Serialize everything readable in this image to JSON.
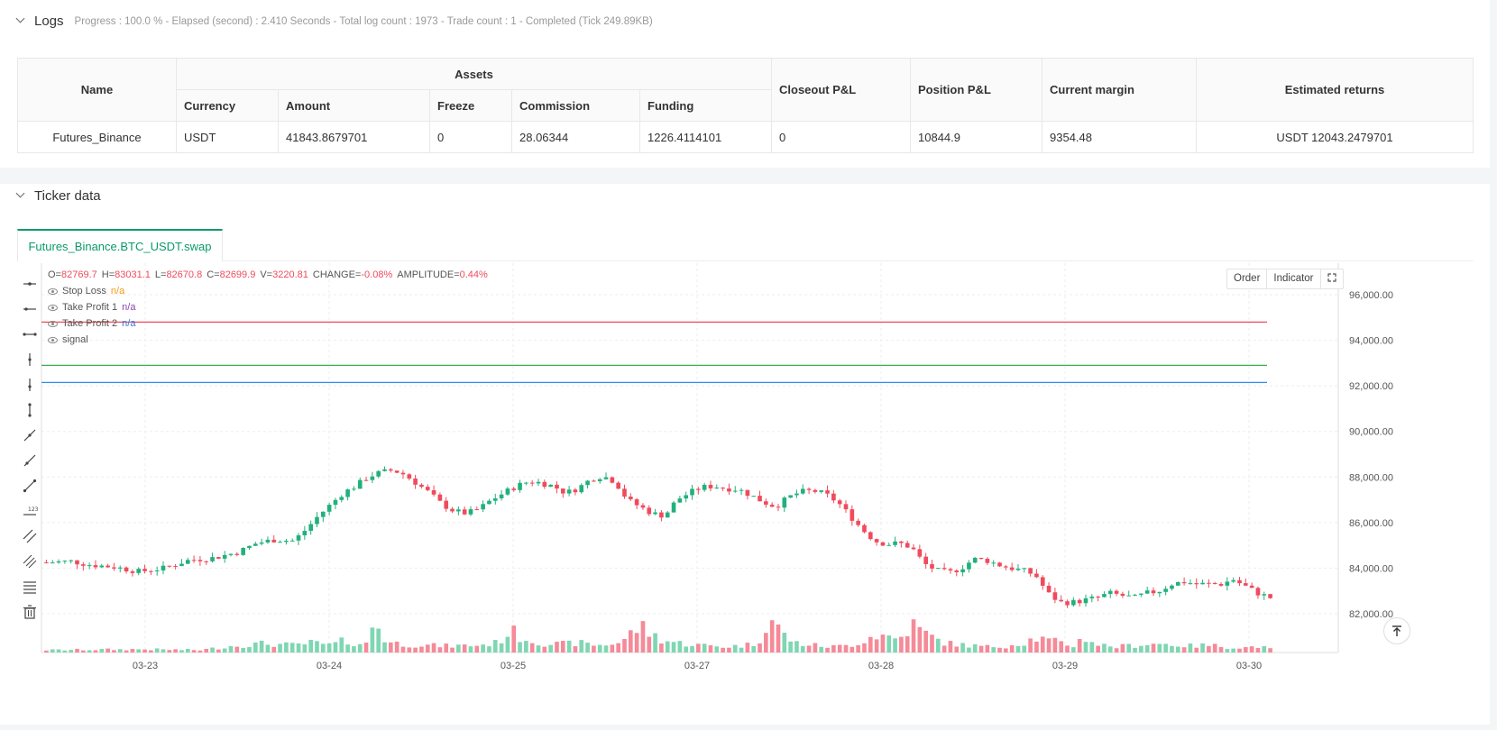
{
  "logs": {
    "title": "Logs",
    "status": "Progress : 100.0 % - Elapsed (second) : 2.410  Seconds - Total log count : 1973 - Trade count : 1 - Completed (Tick 249.89KB)"
  },
  "assets_table": {
    "headers": {
      "name": "Name",
      "assets": "Assets",
      "currency": "Currency",
      "amount": "Amount",
      "freeze": "Freeze",
      "commission": "Commission",
      "funding": "Funding",
      "closeout_pnl": "Closeout P&L",
      "position_pnl": "Position P&L",
      "current_margin": "Current margin",
      "estimated_returns": "Estimated returns"
    },
    "row": {
      "name": "Futures_Binance",
      "currency": "USDT",
      "amount": "41843.8679701",
      "freeze": "0",
      "commission": "28.06344",
      "funding": "1226.4114101",
      "closeout_pnl": "0",
      "position_pnl": "10844.9",
      "current_margin": "9354.48",
      "estimated_returns": "USDT 12043.2479701"
    }
  },
  "ticker": {
    "title": "Ticker data",
    "tab_label": "Futures_Binance.BTC_USDT.swap",
    "buttons": {
      "order": "Order",
      "indicator": "Indicator"
    },
    "legend": {
      "o_label": "O=",
      "o": "82769.7",
      "h_label": "H=",
      "h": "83031.1",
      "l_label": "L=",
      "l": "82670.8",
      "c_label": "C=",
      "c": "82699.9",
      "v_label": "V=",
      "v": "3220.81",
      "change_label": "CHANGE=",
      "change": "-0.08%",
      "amplitude_label": "AMPLITUDE=",
      "amplitude": "0.44%",
      "series": [
        {
          "name": "Stop Loss",
          "value": "n/a"
        },
        {
          "name": "Take Profit 1",
          "value": "n/a"
        },
        {
          "name": "Take Profit 2",
          "value": "n/a"
        },
        {
          "name": "signal",
          "value": ""
        }
      ]
    }
  },
  "chart_data": {
    "type": "candlestick",
    "y_ticks": [
      "96,000.00",
      "94,000.00",
      "92,000.00",
      "90,000.00",
      "88,000.00",
      "86,000.00",
      "84,000.00",
      "82,000.00"
    ],
    "y_tick_values": [
      96000,
      94000,
      92000,
      90000,
      88000,
      86000,
      84000,
      82000
    ],
    "x_ticks": [
      "03-23",
      "03-24",
      "03-25",
      "03-27",
      "03-28",
      "03-29",
      "03-30"
    ],
    "horizontal_lines": [
      {
        "name": "Stop Loss",
        "value": 94800,
        "color": "#ef4b5c"
      },
      {
        "name": "Take Profit 1",
        "value": 92900,
        "color": "#3cae4f"
      },
      {
        "name": "Take Profit 2",
        "value": 92150,
        "color": "#2c8ff0"
      }
    ],
    "up_color": "#22b07d",
    "down_color": "#ef4b5c",
    "close_path": [
      [
        0,
        84250
      ],
      [
        8,
        84300
      ],
      [
        14,
        84150
      ],
      [
        22,
        84050
      ],
      [
        30,
        83850
      ],
      [
        38,
        84000
      ],
      [
        46,
        84350
      ],
      [
        54,
        84450
      ],
      [
        62,
        84700
      ],
      [
        68,
        85100
      ],
      [
        74,
        85250
      ],
      [
        80,
        85200
      ],
      [
        84,
        85700
      ],
      [
        88,
        86300
      ],
      [
        92,
        86800
      ],
      [
        96,
        87300
      ],
      [
        100,
        87600
      ],
      [
        104,
        88000
      ],
      [
        108,
        88200
      ],
      [
        112,
        88300
      ],
      [
        116,
        88100
      ],
      [
        120,
        87700
      ],
      [
        124,
        87300
      ],
      [
        128,
        86800
      ],
      [
        132,
        86500
      ],
      [
        136,
        86400
      ],
      [
        140,
        86600
      ],
      [
        144,
        87000
      ],
      [
        148,
        87300
      ],
      [
        152,
        87600
      ],
      [
        156,
        87800
      ],
      [
        160,
        87750
      ],
      [
        164,
        87600
      ],
      [
        168,
        87300
      ],
      [
        172,
        87500
      ],
      [
        176,
        87900
      ],
      [
        180,
        88050
      ],
      [
        184,
        87800
      ],
      [
        188,
        87000
      ],
      [
        192,
        86700
      ],
      [
        196,
        86400
      ],
      [
        200,
        86300
      ],
      [
        204,
        87000
      ],
      [
        208,
        87300
      ],
      [
        212,
        87550
      ],
      [
        216,
        87600
      ],
      [
        220,
        87500
      ],
      [
        224,
        87450
      ],
      [
        228,
        87200
      ],
      [
        232,
        86900
      ],
      [
        236,
        86700
      ],
      [
        240,
        87100
      ],
      [
        244,
        87350
      ],
      [
        248,
        87400
      ],
      [
        252,
        87250
      ],
      [
        256,
        86900
      ],
      [
        260,
        86300
      ],
      [
        264,
        85700
      ],
      [
        268,
        85200
      ],
      [
        272,
        85050
      ],
      [
        276,
        85100
      ],
      [
        280,
        84900
      ],
      [
        284,
        84200
      ],
      [
        288,
        83900
      ],
      [
        292,
        83800
      ],
      [
        296,
        84000
      ],
      [
        300,
        84400
      ],
      [
        304,
        84350
      ],
      [
        308,
        84150
      ],
      [
        312,
        84000
      ],
      [
        316,
        83900
      ],
      [
        320,
        83700
      ],
      [
        324,
        82900
      ],
      [
        328,
        82500
      ],
      [
        332,
        82500
      ],
      [
        336,
        82600
      ],
      [
        340,
        82700
      ],
      [
        344,
        82900
      ],
      [
        348,
        82800
      ],
      [
        352,
        82700
      ],
      [
        356,
        82900
      ],
      [
        360,
        83000
      ],
      [
        364,
        83300
      ],
      [
        368,
        83400
      ],
      [
        372,
        83300
      ],
      [
        376,
        83300
      ],
      [
        380,
        83300
      ],
      [
        384,
        83500
      ],
      [
        388,
        83200
      ],
      [
        392,
        82900
      ],
      [
        396,
        82700
      ]
    ],
    "volume_profile": [
      [
        0,
        3
      ],
      [
        30,
        4
      ],
      [
        50,
        3
      ],
      [
        60,
        8
      ],
      [
        70,
        11
      ],
      [
        80,
        9
      ],
      [
        86,
        12
      ],
      [
        92,
        9
      ],
      [
        96,
        14
      ],
      [
        100,
        12
      ],
      [
        104,
        10
      ],
      [
        106,
        42
      ],
      [
        110,
        13
      ],
      [
        116,
        10
      ],
      [
        122,
        9
      ],
      [
        130,
        8
      ],
      [
        140,
        9
      ],
      [
        146,
        12
      ],
      [
        150,
        27
      ],
      [
        154,
        18
      ],
      [
        160,
        12
      ],
      [
        166,
        10
      ],
      [
        172,
        12
      ],
      [
        176,
        10
      ],
      [
        180,
        9
      ],
      [
        186,
        13
      ],
      [
        192,
        33
      ],
      [
        196,
        22
      ],
      [
        200,
        15
      ],
      [
        206,
        11
      ],
      [
        212,
        9
      ],
      [
        220,
        7
      ],
      [
        226,
        9
      ],
      [
        230,
        11
      ],
      [
        234,
        44
      ],
      [
        238,
        24
      ],
      [
        242,
        12
      ],
      [
        248,
        9
      ],
      [
        254,
        7
      ],
      [
        260,
        9
      ],
      [
        264,
        14
      ],
      [
        268,
        22
      ],
      [
        272,
        20
      ],
      [
        276,
        16
      ],
      [
        280,
        35
      ],
      [
        284,
        24
      ],
      [
        288,
        16
      ],
      [
        292,
        11
      ],
      [
        298,
        9
      ],
      [
        304,
        7
      ],
      [
        310,
        8
      ],
      [
        316,
        12
      ],
      [
        320,
        18
      ],
      [
        324,
        15
      ],
      [
        328,
        12
      ],
      [
        332,
        8
      ],
      [
        336,
        19
      ],
      [
        340,
        10
      ],
      [
        346,
        7
      ],
      [
        352,
        9
      ],
      [
        358,
        11
      ],
      [
        364,
        10
      ],
      [
        370,
        8
      ],
      [
        376,
        9
      ],
      [
        382,
        7
      ],
      [
        388,
        6
      ],
      [
        392,
        8
      ],
      [
        396,
        4
      ]
    ]
  }
}
